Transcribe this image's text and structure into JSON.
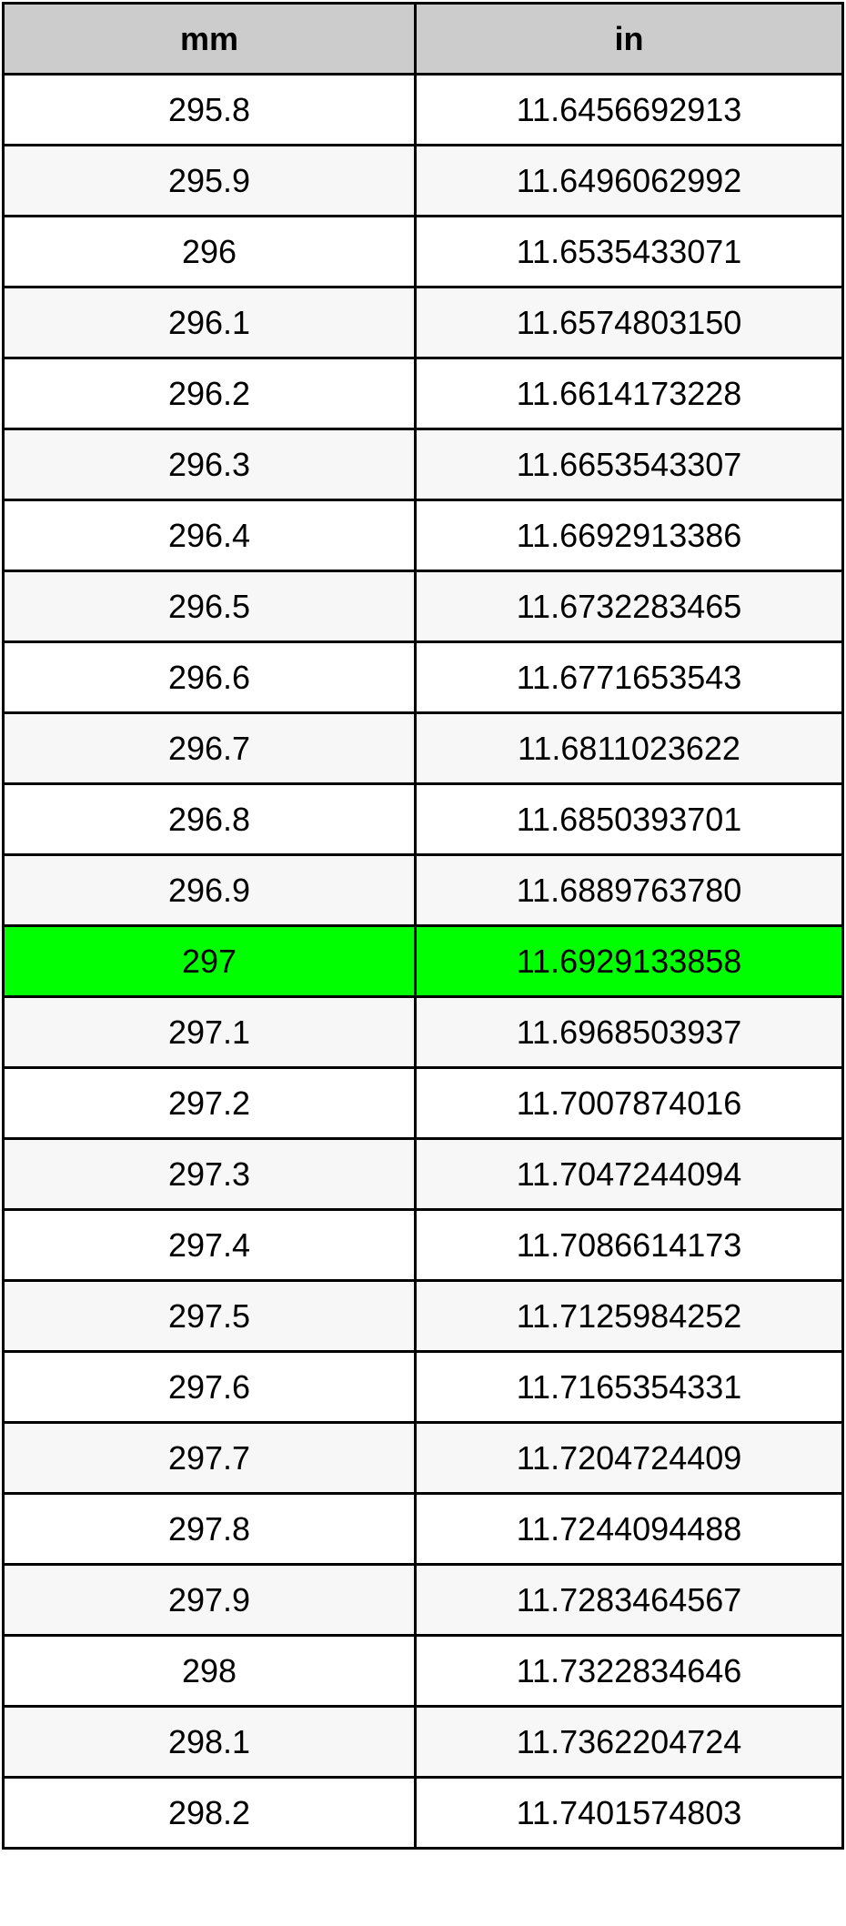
{
  "table": {
    "headers": [
      "mm",
      "in"
    ],
    "highlight_color": "#00ff00",
    "highlighted_row": 12,
    "rows": [
      [
        "295.8",
        "11.6456692913"
      ],
      [
        "295.9",
        "11.6496062992"
      ],
      [
        "296",
        "11.6535433071"
      ],
      [
        "296.1",
        "11.6574803150"
      ],
      [
        "296.2",
        "11.6614173228"
      ],
      [
        "296.3",
        "11.6653543307"
      ],
      [
        "296.4",
        "11.6692913386"
      ],
      [
        "296.5",
        "11.6732283465"
      ],
      [
        "296.6",
        "11.6771653543"
      ],
      [
        "296.7",
        "11.6811023622"
      ],
      [
        "296.8",
        "11.6850393701"
      ],
      [
        "296.9",
        "11.6889763780"
      ],
      [
        "297",
        "11.6929133858"
      ],
      [
        "297.1",
        "11.6968503937"
      ],
      [
        "297.2",
        "11.7007874016"
      ],
      [
        "297.3",
        "11.7047244094"
      ],
      [
        "297.4",
        "11.7086614173"
      ],
      [
        "297.5",
        "11.7125984252"
      ],
      [
        "297.6",
        "11.7165354331"
      ],
      [
        "297.7",
        "11.7204724409"
      ],
      [
        "297.8",
        "11.7244094488"
      ],
      [
        "297.9",
        "11.7283464567"
      ],
      [
        "298",
        "11.7322834646"
      ],
      [
        "298.1",
        "11.7362204724"
      ],
      [
        "298.2",
        "11.7401574803"
      ]
    ]
  }
}
